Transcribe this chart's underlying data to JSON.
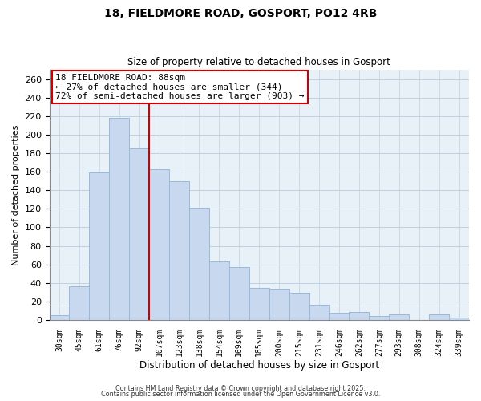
{
  "title": "18, FIELDMORE ROAD, GOSPORT, PO12 4RB",
  "subtitle": "Size of property relative to detached houses in Gosport",
  "xlabel": "Distribution of detached houses by size in Gosport",
  "ylabel": "Number of detached properties",
  "categories": [
    "30sqm",
    "45sqm",
    "61sqm",
    "76sqm",
    "92sqm",
    "107sqm",
    "123sqm",
    "138sqm",
    "154sqm",
    "169sqm",
    "185sqm",
    "200sqm",
    "215sqm",
    "231sqm",
    "246sqm",
    "262sqm",
    "277sqm",
    "293sqm",
    "308sqm",
    "324sqm",
    "339sqm"
  ],
  "values": [
    5,
    36,
    159,
    218,
    185,
    163,
    150,
    121,
    63,
    57,
    35,
    34,
    29,
    16,
    8,
    9,
    4,
    6,
    0,
    6,
    3
  ],
  "bar_color": "#c8d8ef",
  "bar_edge_color": "#9ab8d8",
  "vline_x": 4.5,
  "vline_color": "#cc0000",
  "annotation_title": "18 FIELDMORE ROAD: 88sqm",
  "annotation_line1": "← 27% of detached houses are smaller (344)",
  "annotation_line2": "72% of semi-detached houses are larger (903) →",
  "annotation_box_color": "#ffffff",
  "annotation_box_edge": "#cc0000",
  "ylim": [
    0,
    270
  ],
  "yticks": [
    0,
    20,
    40,
    60,
    80,
    100,
    120,
    140,
    160,
    180,
    200,
    220,
    240,
    260
  ],
  "footer1": "Contains HM Land Registry data © Crown copyright and database right 2025.",
  "footer2": "Contains public sector information licensed under the Open Government Licence v3.0.",
  "bg_color": "#ffffff",
  "plot_bg_color": "#e8f0f8",
  "grid_color": "#c0cfe0"
}
